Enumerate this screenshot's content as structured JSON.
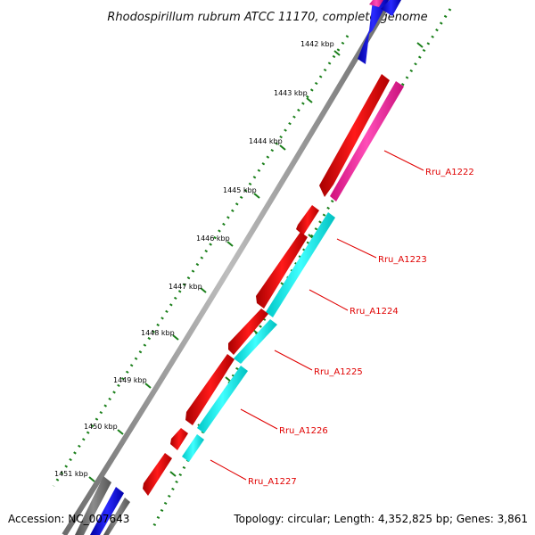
{
  "title": "Rhodospirillum rubrum ATCC 11170, complete genome",
  "footer": {
    "accession": "Accession: NC_007643",
    "summary": "Topology: circular; Length: 4,352,825 bp; Genes: 3,861"
  },
  "ticks": [
    "1442 kbp",
    "1443 kbp",
    "1444 kbp",
    "1445 kbp",
    "1446 kbp",
    "1447 kbp",
    "1448 kbp",
    "1449 kbp",
    "1450 kbp",
    "1451 kbp"
  ],
  "genes": [
    "Rru_A1222",
    "Rru_A1223",
    "Rru_A1224",
    "Rru_A1225",
    "Rru_A1226",
    "Rru_A1227"
  ],
  "colors": {
    "backbone": "#8a8a8a",
    "forward_gene": "#ff0000",
    "reverse_gene": "#00ffff",
    "pink_gene": "#ff2da6",
    "blue_gene": "#0000ff",
    "gray_gene": "#6e6e6e",
    "tick_dots": "#1a7f1a",
    "label": "#e00000"
  }
}
